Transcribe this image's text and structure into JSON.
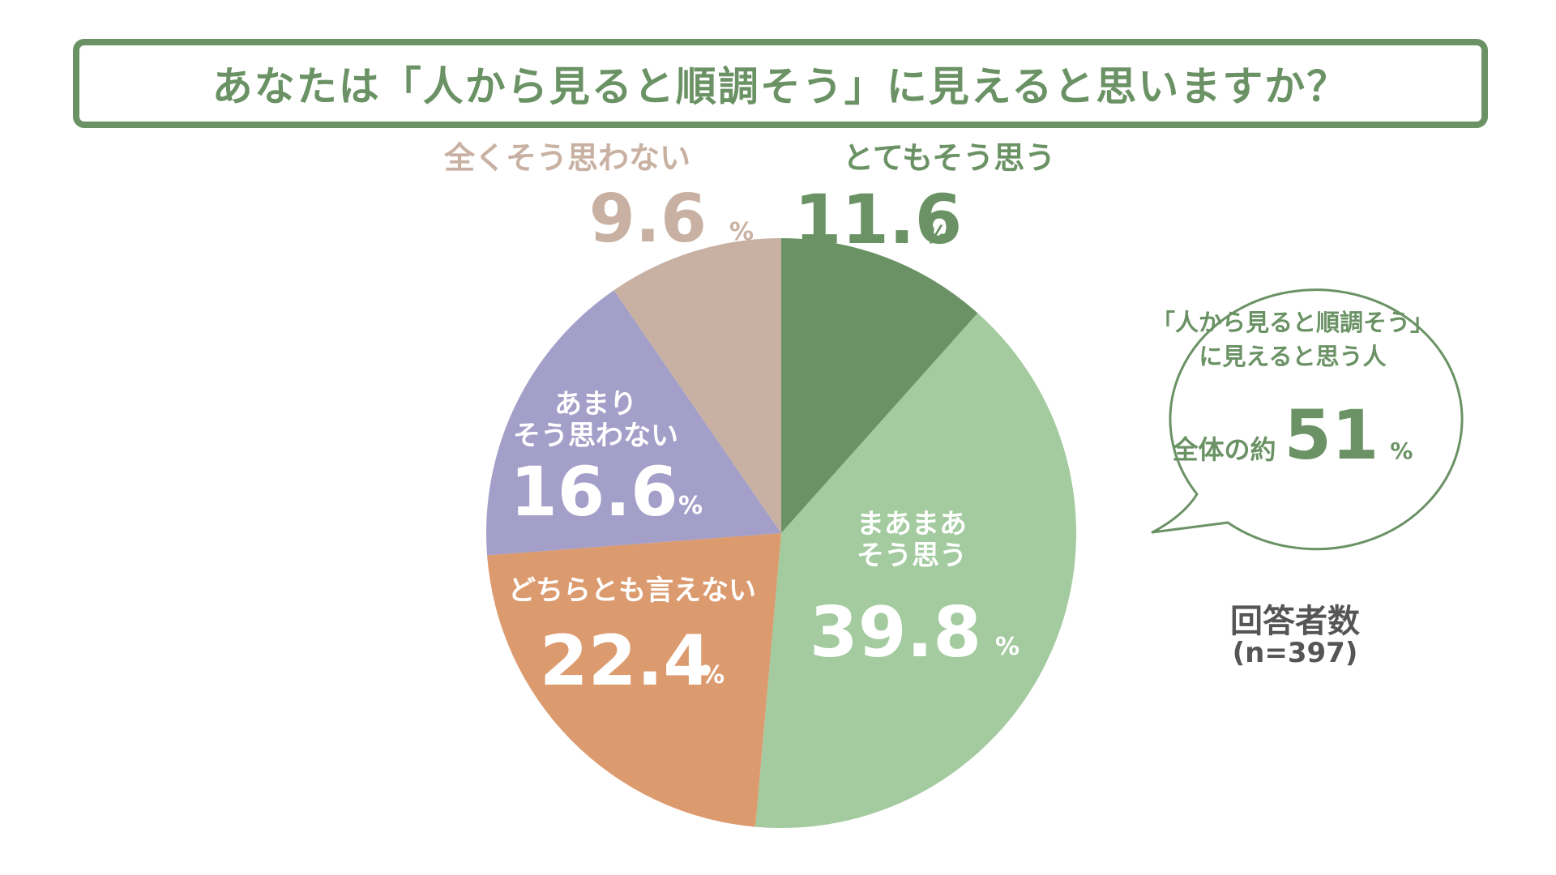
{
  "title": "あなたは「人から見ると順調そう」に見えると思いますか？",
  "chart_data": {
    "type": "pie",
    "unit": "%",
    "slices": [
      {
        "label": "とてもそう思う",
        "value": 11.6,
        "color": "#6a9264"
      },
      {
        "label": "まあまあそう思う",
        "value": 39.8,
        "color": "#a3cb9f"
      },
      {
        "label": "どちらとも言えない",
        "value": 22.4,
        "color": "#dc9a6f"
      },
      {
        "label": "あまりそう思わない",
        "value": 16.6,
        "color": "#a39fc8"
      },
      {
        "label": "全くそう思わない",
        "value": 9.6,
        "color": "#c8b1a2"
      }
    ]
  },
  "callout": {
    "line1": "「人から見ると順調そう」",
    "line2": "に見えると思う人",
    "total_label": "全体の約",
    "total_value": "51",
    "total_unit": "%"
  },
  "respondents": {
    "label": "回答者数",
    "count": "(n=397)"
  },
  "colors": {
    "accent": "#6a9264",
    "inside_label": "#ffffff",
    "outside_label_strong": "#6a9264",
    "outside_label_weak": "#c8b1a2"
  }
}
